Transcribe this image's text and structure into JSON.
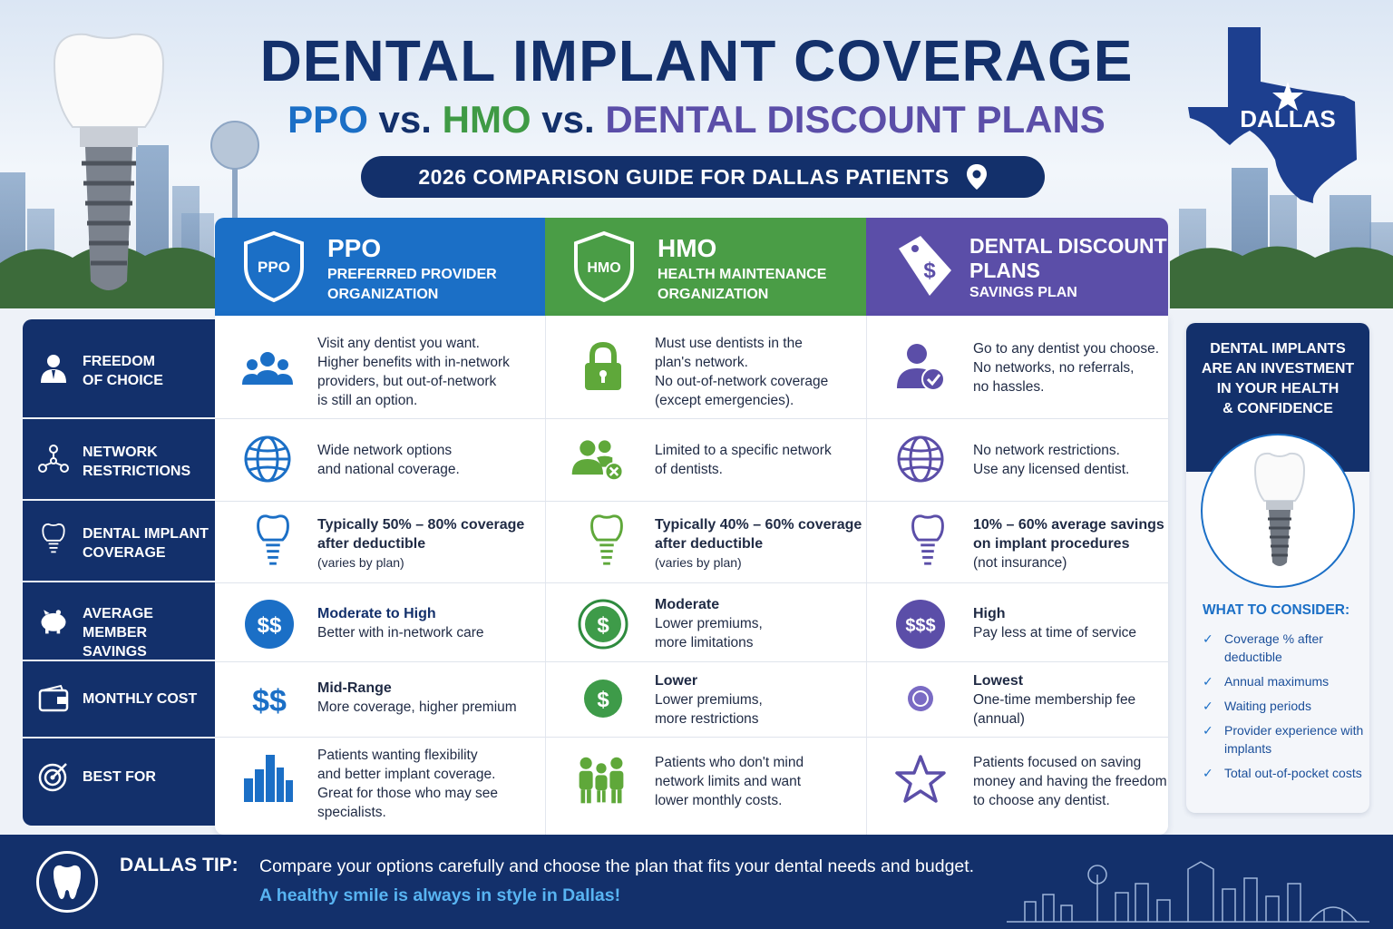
{
  "header": {
    "title": "DENTAL IMPLANT COVERAGE",
    "subtitle_ppo": "PPO",
    "subtitle_vs1": " vs. ",
    "subtitle_hmo": "HMO",
    "subtitle_vs2": " vs. ",
    "subtitle_ddp": "DENTAL DISCOUNT PLANS",
    "guide": "2026 COMPARISON GUIDE FOR DALLAS PATIENTS",
    "state_label": "DALLAS"
  },
  "columns": [
    {
      "title": "PPO",
      "sub1": "PREFERRED PROVIDER",
      "sub2": "ORGANIZATION",
      "badge": "PPO"
    },
    {
      "title": "HMO",
      "sub1": "HEALTH MAINTENANCE",
      "sub2": "ORGANIZATION",
      "badge": "HMO"
    },
    {
      "title1": "DENTAL DISCOUNT",
      "title2": "PLANS",
      "sub1": "SAVINGS PLAN",
      "badge": "$"
    }
  ],
  "rows": [
    {
      "label1": "FREEDOM",
      "label2": "OF CHOICE",
      "icon": "person-icon"
    },
    {
      "label1": "NETWORK",
      "label2": "RESTRICTIONS",
      "icon": "network-icon"
    },
    {
      "label1": "DENTAL IMPLANT",
      "label2": "COVERAGE",
      "icon": "tooth-icon"
    },
    {
      "label1": "AVERAGE MEMBER",
      "label2": "SAVINGS",
      "icon": "piggy-bank-icon"
    },
    {
      "label1": "MONTHLY COST",
      "label2": "",
      "icon": "wallet-icon"
    },
    {
      "label1": "BEST FOR",
      "label2": "",
      "icon": "target-icon"
    }
  ],
  "cells": {
    "freedom": {
      "ppo": [
        "Visit any dentist you want.",
        "Higher benefits with in-network",
        "providers, but out-of-network",
        "is still an option."
      ],
      "hmo": [
        "Must use dentists in the",
        "plan's network.",
        "No out-of-network coverage",
        "(except emergencies)."
      ],
      "ddp": [
        "Go to any dentist you choose.",
        "No networks, no referrals,",
        "no hassles."
      ]
    },
    "network": {
      "ppo": [
        "Wide network options",
        "and national coverage."
      ],
      "hmo": [
        "Limited to a specific network",
        "of dentists."
      ],
      "ddp": [
        "No network restrictions.",
        "Use any licensed dentist."
      ]
    },
    "implant": {
      "ppo": [
        "Typically 50% – 80% coverage",
        "after deductible",
        "(varies by plan)"
      ],
      "hmo": [
        "Typically 40% – 60% coverage",
        "after deductible",
        "(varies by plan)"
      ],
      "ddp": [
        "10% – 60% average savings",
        "on implant procedures",
        "(not insurance)"
      ]
    },
    "savings": {
      "ppo": [
        "Moderate to High",
        "Better with in-network care"
      ],
      "ppo_icon": "$$",
      "hmo": [
        "Moderate",
        "Lower premiums,",
        "more limitations"
      ],
      "hmo_icon": "$",
      "ddp": [
        "High",
        "Pay less at time of service"
      ],
      "ddp_icon": "$$$"
    },
    "monthly": {
      "ppo": [
        "Mid-Range",
        "More coverage, higher premium"
      ],
      "ppo_icon": "$$",
      "hmo": [
        "Lower",
        "Lower premiums,",
        "more restrictions"
      ],
      "hmo_icon": "$",
      "ddp": [
        "Lowest",
        "One-time membership fee",
        "(annual)"
      ]
    },
    "bestfor": {
      "ppo": [
        "Patients wanting flexibility",
        "and better implant coverage.",
        "Great for those who may see",
        "specialists."
      ],
      "hmo": [
        "Patients who don't mind",
        "network limits and want",
        "lower monthly costs."
      ],
      "ddp": [
        "Patients focused on saving",
        "money and having the freedom",
        "to choose any dentist."
      ]
    }
  },
  "right_panel": {
    "heading": [
      "DENTAL IMPLANTS",
      "ARE AN INVESTMENT",
      "IN YOUR HEALTH",
      "& CONFIDENCE"
    ],
    "consider_title": "WHAT TO CONSIDER:",
    "items": [
      "Coverage % after deductible",
      "Annual maximums",
      "Waiting periods",
      "Provider experience with implants",
      "Total out-of-pocket costs"
    ]
  },
  "footer": {
    "tip_label": "DALLAS TIP:",
    "tip_text": "Compare your options carefully and choose the plan that fits your dental needs and budget.",
    "slogan": "A healthy smile is always in style in Dallas!"
  },
  "colors": {
    "navy": "#13306b",
    "ppo_blue": "#1b6fc6",
    "hmo_green": "#4a9d46",
    "ddp_purple": "#5b4ea8",
    "accent_light_blue": "#58b4f2"
  }
}
